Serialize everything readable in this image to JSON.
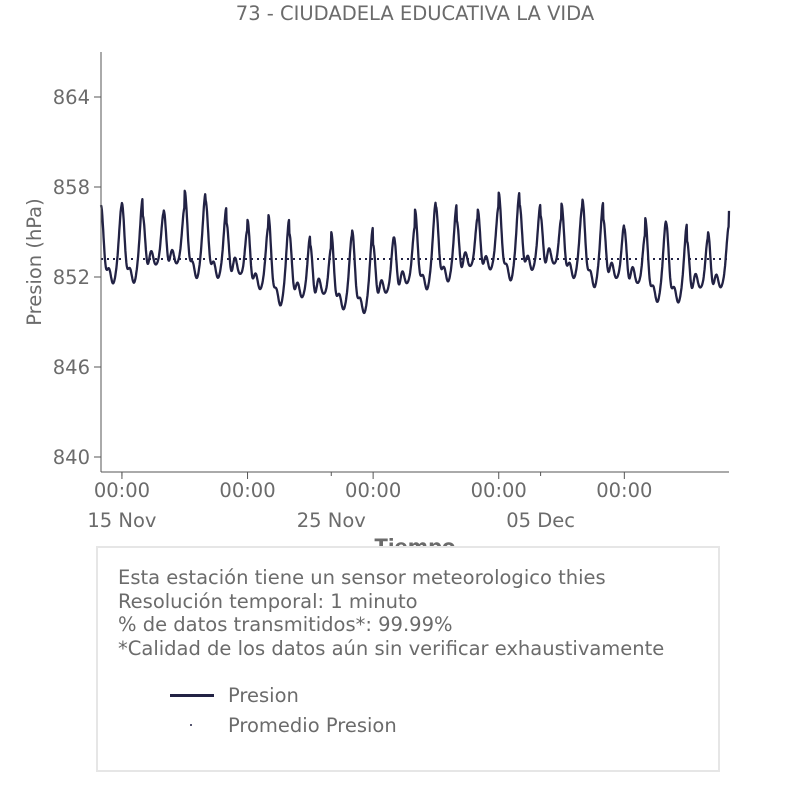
{
  "chart_data": {
    "type": "line",
    "title": "73 - CIUDADELA EDUCATIVA LA VIDA",
    "xlabel": "Tiempo",
    "ylabel": "Presion (hPa)",
    "x_range": [
      "2024-11-14",
      "2024-12-14"
    ],
    "ylim": [
      839,
      867
    ],
    "yticks": [
      840,
      846,
      852,
      858,
      864
    ],
    "xticks": [
      {
        "date": "2024-11-15",
        "time": "00:00",
        "label": "15 Nov"
      },
      {
        "date": "2024-11-21",
        "time": "00:00",
        "label": ""
      },
      {
        "date": "2024-11-27",
        "time": "00:00",
        "label": ""
      },
      {
        "date": "2024-12-03",
        "time": "00:00",
        "label": ""
      },
      {
        "date": "2024-12-09",
        "time": "00:00",
        "label": ""
      }
    ],
    "date_labels": [
      {
        "date": "2024-11-15",
        "text": "15 Nov"
      },
      {
        "date": "2024-11-25",
        "text": "25 Nov"
      },
      {
        "date": "2024-12-05",
        "text": "05 Dec"
      }
    ],
    "grid": false,
    "series": [
      {
        "name": "Presion",
        "color": "#222244",
        "description_points": [
          {
            "date": "2024-11-14",
            "value": 853.5
          },
          {
            "date": "2024-11-15",
            "value": 853.5
          },
          {
            "date": "2024-11-16",
            "value": 853.8
          },
          {
            "date": "2024-11-17",
            "value": 854.0
          },
          {
            "date": "2024-11-18",
            "value": 854.2
          },
          {
            "date": "2024-11-19",
            "value": 854.0
          },
          {
            "date": "2024-11-20",
            "value": 853.5
          },
          {
            "date": "2024-11-21",
            "value": 853.0
          },
          {
            "date": "2024-11-22",
            "value": 852.5
          },
          {
            "date": "2024-11-23",
            "value": 852.2
          },
          {
            "date": "2024-11-24",
            "value": 852.0
          },
          {
            "date": "2024-11-25",
            "value": 851.8
          },
          {
            "date": "2024-11-26",
            "value": 851.6
          },
          {
            "date": "2024-11-27",
            "value": 851.8
          },
          {
            "date": "2024-11-28",
            "value": 852.3
          },
          {
            "date": "2024-11-29",
            "value": 853.0
          },
          {
            "date": "2024-11-30",
            "value": 853.5
          },
          {
            "date": "2024-12-01",
            "value": 853.6
          },
          {
            "date": "2024-12-02",
            "value": 853.8
          },
          {
            "date": "2024-12-03",
            "value": 854.0
          },
          {
            "date": "2024-12-04",
            "value": 854.0
          },
          {
            "date": "2024-12-05",
            "value": 854.0
          },
          {
            "date": "2024-12-06",
            "value": 853.8
          },
          {
            "date": "2024-12-07",
            "value": 853.6
          },
          {
            "date": "2024-12-08",
            "value": 853.4
          },
          {
            "date": "2024-12-09",
            "value": 853.0
          },
          {
            "date": "2024-12-10",
            "value": 852.5
          },
          {
            "date": "2024-12-11",
            "value": 852.3
          },
          {
            "date": "2024-12-12",
            "value": 852.2
          },
          {
            "date": "2024-12-13",
            "value": 852.4
          },
          {
            "date": "2024-12-14",
            "value": 852.8
          }
        ],
        "daily_amplitude": 2.2
      },
      {
        "name": "Promedio Presion",
        "color": "#222244",
        "value": 853.2
      }
    ]
  },
  "info": {
    "lines": [
      "Esta estación tiene un sensor meteorologico thies",
      "Resolución temporal: 1 minuto",
      "% de datos transmitidos*: 99.99%",
      "*Calidad de los datos aún sin verificar exhaustivamente"
    ]
  },
  "legend": {
    "presion": "Presion",
    "promedio": "Promedio Presion"
  }
}
